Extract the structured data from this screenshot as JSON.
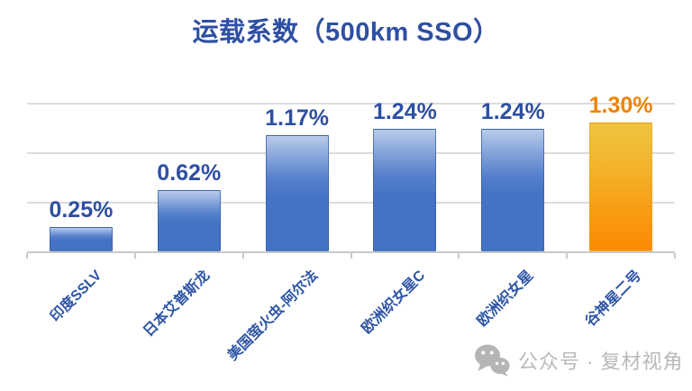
{
  "chart_data": {
    "type": "bar",
    "title": "运载系数（500km SSO）",
    "categories": [
      "印度SSLV",
      "日本艾普斯龙",
      "美国萤火虫-阿尔法",
      "欧洲织女星C",
      "欧洲织女星",
      "谷神星二号"
    ],
    "values": [
      0.25,
      0.62,
      1.17,
      1.24,
      1.24,
      1.3
    ],
    "value_labels": [
      "0.25%",
      "0.62%",
      "1.17%",
      "1.24%",
      "1.24%",
      "1.30%"
    ],
    "unit": "%",
    "xlabel": "",
    "ylabel": "",
    "ylim": [
      0,
      1.5
    ],
    "gridlines": [
      0.5,
      1.0,
      1.5
    ],
    "grid": true,
    "legend_position": "none",
    "y_axis_labels_visible": false,
    "highlight_index": 5,
    "colors": {
      "bar_top": "#b9cbea",
      "bar_bottom": "#4472c4",
      "highlight_bar_top": "#eec43e",
      "highlight_bar_bottom": "#fb8b03",
      "label_text": "#2e4fa3",
      "highlight_label_text": "#f08300",
      "title_text": "#2e4fa3",
      "gridline": "#dcdcdc"
    }
  },
  "watermark": {
    "icon": "wechat-icon",
    "text": "公众号 · 复材视角"
  }
}
